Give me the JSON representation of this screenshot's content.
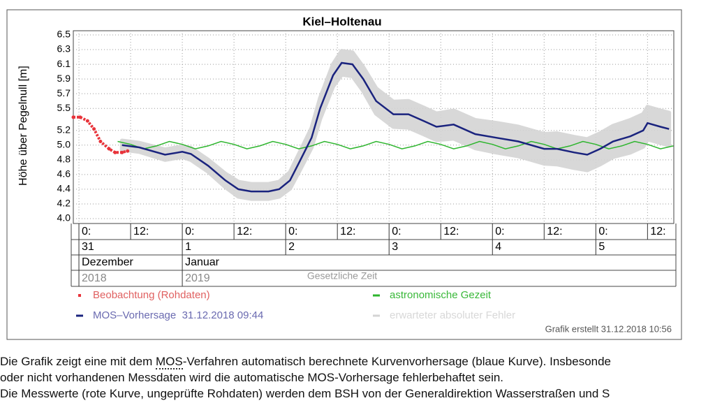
{
  "chart_data": {
    "type": "line",
    "title": "Kiel–Holtenau",
    "ylabel": "Höhe über Pegelnull [m]",
    "ylim": [
      4.0,
      6.5
    ],
    "yticks": [
      {
        "value": 4.0,
        "label": "4.0"
      },
      4.2,
      4.4,
      4.6,
      4.8,
      {
        "value": 5.0,
        "label": "5.0"
      },
      5.2,
      5.5,
      5.7,
      5.9,
      6.1,
      6.3,
      6.5
    ],
    "xlim": [
      -1.3,
      138.1
    ],
    "xticks": [
      {
        "value": 0,
        "label": "0:"
      },
      {
        "value": 12,
        "label": "12:"
      },
      {
        "value": 24,
        "label": "0:"
      },
      {
        "value": 36,
        "label": "12:"
      },
      {
        "value": 48,
        "label": "0:"
      },
      {
        "value": 60,
        "label": "12:"
      },
      {
        "value": 72,
        "label": "0:"
      },
      {
        "value": 84,
        "label": "12:"
      },
      {
        "value": 96,
        "label": "0:"
      },
      {
        "value": 108,
        "label": "12:"
      },
      {
        "value": 120,
        "label": "0:"
      },
      {
        "value": 132,
        "label": "12:"
      }
    ],
    "days": [
      {
        "value": 0,
        "label": "31"
      },
      {
        "value": 24,
        "label": "1"
      },
      {
        "value": 48,
        "label": "2"
      },
      {
        "value": 72,
        "label": "3"
      },
      {
        "value": 96,
        "label": "4"
      },
      {
        "value": 120,
        "label": "5"
      }
    ],
    "months": [
      {
        "value": 0,
        "label": "Dezember"
      },
      {
        "value": 24,
        "label": "Januar"
      }
    ],
    "years": [
      {
        "value": 0,
        "label": "2018"
      },
      {
        "value": 24,
        "label": "2019"
      }
    ],
    "time_note": "Gesetzliche Zeit",
    "grid": true,
    "series": [
      {
        "name": "Beobachtung (Rohdaten)",
        "color": "#e8333a",
        "style": "dots",
        "x": [
          -1.3,
          0.3,
          2,
          3.5,
          5,
          7,
          8.4,
          10,
          11.3
        ],
        "values": [
          5.38,
          5.38,
          5.33,
          5.22,
          5.05,
          4.95,
          4.9,
          4.9,
          4.92
        ]
      },
      {
        "name": "astronomische Gezeit",
        "color": "#2db52d",
        "style": "line",
        "x": [
          9,
          12,
          15,
          18,
          21,
          24,
          27,
          30,
          33,
          36,
          39,
          42,
          45,
          48,
          51,
          54,
          57,
          60,
          63,
          66,
          69,
          72,
          75,
          78,
          81,
          84,
          87,
          90,
          93,
          96,
          99,
          102,
          105,
          108,
          111,
          114,
          117,
          120,
          123,
          126,
          129,
          132,
          135,
          138
        ],
        "values": [
          5.05,
          5.01,
          4.95,
          4.99,
          5.05,
          5.01,
          4.95,
          4.99,
          5.05,
          5.01,
          4.95,
          4.99,
          5.05,
          5.01,
          4.95,
          4.99,
          5.05,
          5.01,
          4.95,
          4.99,
          5.05,
          5.01,
          4.95,
          4.99,
          5.05,
          5.01,
          4.95,
          4.99,
          5.05,
          5.01,
          4.95,
          4.99,
          5.05,
          5.01,
          4.95,
          4.99,
          5.05,
          5.01,
          4.95,
          4.99,
          5.05,
          5.01,
          4.95,
          4.99
        ]
      },
      {
        "name": "MOS–Vorhersage  31.12.2018 09:44",
        "color": "#1a237e",
        "style": "line",
        "x": [
          10,
          14,
          20,
          24,
          26,
          30,
          34,
          37,
          40,
          44,
          46.5,
          49,
          51,
          54,
          56,
          59,
          61,
          63.5,
          66,
          69,
          73,
          76.5,
          80,
          83,
          87,
          92,
          97,
          102,
          105,
          108,
          111,
          115,
          118,
          121,
          124,
          128,
          131,
          132,
          135,
          137
        ],
        "values": [
          5.0,
          4.97,
          4.87,
          4.91,
          4.88,
          4.72,
          4.52,
          4.4,
          4.37,
          4.37,
          4.4,
          4.52,
          4.75,
          5.1,
          5.5,
          5.95,
          6.12,
          6.1,
          5.9,
          5.6,
          5.42,
          5.42,
          5.33,
          5.25,
          5.28,
          5.15,
          5.1,
          5.05,
          5.0,
          4.95,
          4.95,
          4.9,
          4.87,
          4.95,
          5.05,
          5.12,
          5.2,
          5.3,
          5.25,
          5.22
        ]
      },
      {
        "name": "erwarteter absoluter Fehler",
        "color": "#d4d4d4",
        "style": "band",
        "x": [
          10,
          14,
          20,
          24,
          26,
          30,
          34,
          37,
          40,
          44,
          46.5,
          49,
          51,
          54,
          56,
          59,
          61,
          63.5,
          66,
          69,
          73,
          76.5,
          80,
          83,
          87,
          92,
          97,
          102,
          105,
          108,
          111,
          115,
          118,
          121,
          124,
          128,
          131,
          132,
          135,
          137
        ],
        "upper": [
          5.06,
          5.03,
          4.94,
          4.98,
          4.96,
          4.8,
          4.61,
          4.5,
          4.47,
          4.47,
          4.5,
          4.63,
          4.87,
          5.23,
          5.64,
          6.1,
          6.28,
          6.26,
          6.06,
          5.77,
          5.59,
          5.6,
          5.51,
          5.43,
          5.47,
          5.34,
          5.3,
          5.25,
          5.2,
          5.15,
          5.16,
          5.11,
          5.08,
          5.16,
          5.26,
          5.34,
          5.42,
          5.52,
          5.47,
          5.44
        ],
        "lower": [
          4.94,
          4.91,
          4.8,
          4.84,
          4.8,
          4.64,
          4.43,
          4.3,
          4.27,
          4.27,
          4.3,
          4.41,
          4.63,
          4.97,
          5.36,
          5.8,
          5.96,
          5.94,
          5.74,
          5.43,
          5.25,
          5.24,
          5.15,
          5.07,
          5.09,
          4.96,
          4.9,
          4.85,
          4.8,
          4.75,
          4.74,
          4.69,
          4.66,
          4.74,
          4.84,
          4.9,
          4.98,
          5.08,
          5.03,
          5.0
        ]
      }
    ],
    "footer": "Grafik erstellt 31.12.2018 10:56"
  },
  "description": {
    "line1": [
      "Die Grafik zeigt eine mit dem ",
      "MOS",
      "-Verfahren automatisch berechnete Kurvenvorhersage (blaue Kurve). Insbesonde"
    ],
    "line2": "oder nicht vorhandenen Messdaten wird die automatische MOS-Vorhersage fehlerbehaftet sein.",
    "line3": "Die Messwerte (rote Kurve, ungeprüfte Rohdaten) werden dem BSH von der Generaldirektion Wasserstraßen und S"
  }
}
